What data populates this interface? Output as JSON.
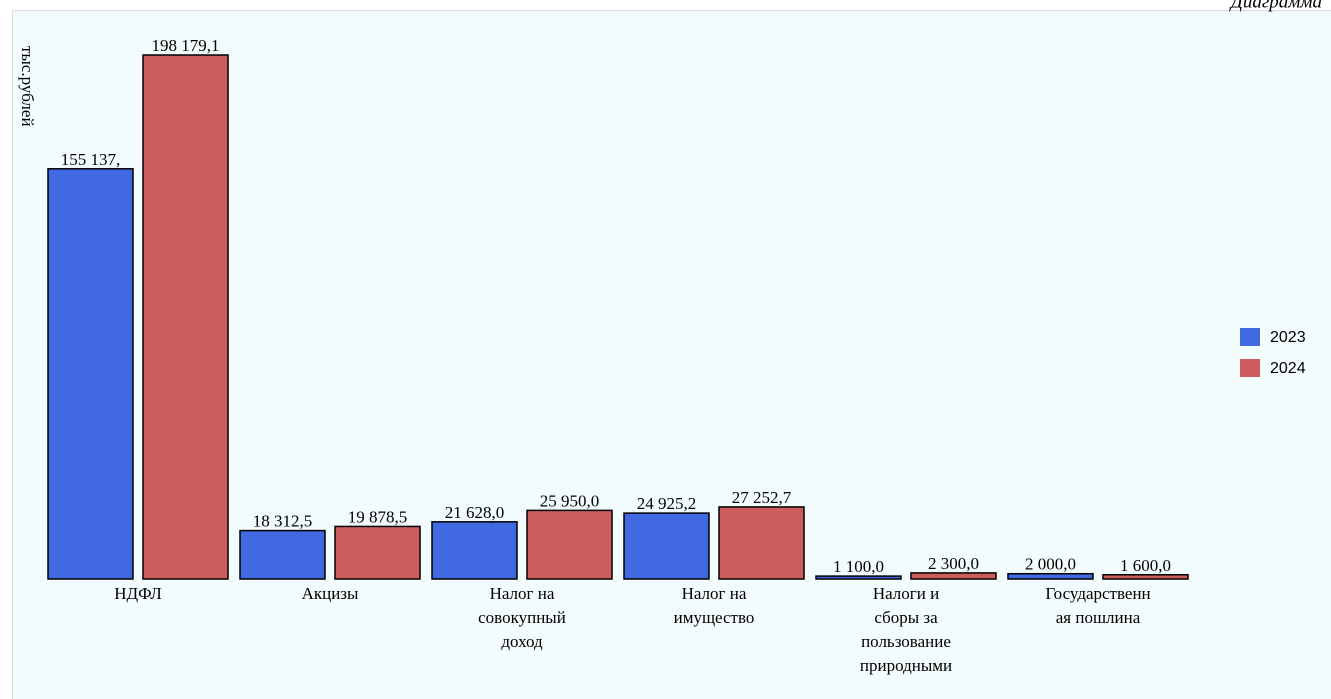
{
  "chart_data": {
    "type": "bar",
    "title": "Диаграмма",
    "y_label": "тыс.рублей",
    "categories": [
      "НДФЛ",
      "Акцизы",
      "Налог на совокупный доход",
      "Налог на имущество",
      "Налоги и сборы за пользование природными",
      "Государственная пошлина"
    ],
    "series": [
      {
        "name": "2023",
        "color": "#4169e1",
        "values": [
          155137,
          18312.5,
          21628.0,
          24925.2,
          1100.0,
          2000.0
        ],
        "value_labels": [
          "155 137,",
          "18 312,5",
          "21 628,0",
          "24 925,2",
          "1 100,0",
          "2 000,0"
        ]
      },
      {
        "name": "2024",
        "color": "#cd5c5c",
        "values": [
          198179.1,
          19878.5,
          25950.0,
          27252.7,
          2300.0,
          1600.0
        ],
        "value_labels": [
          "198 179,1",
          "19 878,5",
          "25 950,0",
          "27 252,7",
          "2 300,0",
          "1 600,0"
        ]
      }
    ],
    "legend": "right"
  }
}
